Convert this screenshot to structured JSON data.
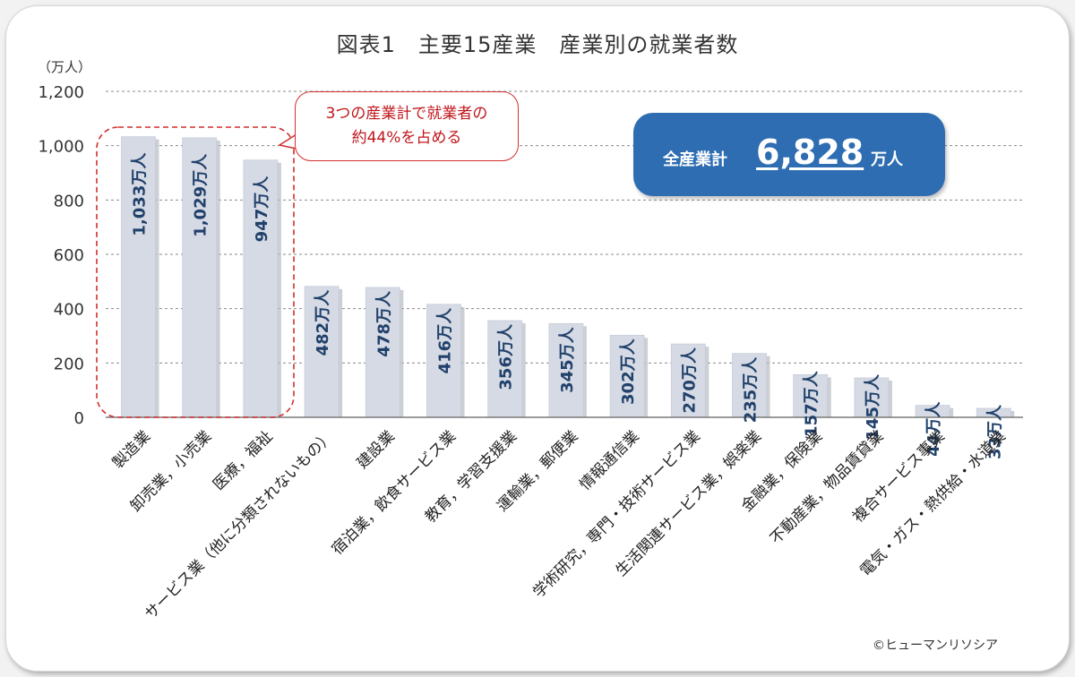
{
  "title": "図表1　主要15産業　産業別の就業者数",
  "unit_label": "（万人）",
  "callout": "3つの産業計で就業者の\n約44%を占める",
  "total": {
    "label": "全産業計",
    "value": "6,828",
    "unit": "万人"
  },
  "copyright": "©ヒューマンリソシア",
  "colors": {
    "bar": "#d5dae4",
    "bar_label": "#21416b",
    "total_box": "#2e6db2",
    "callout": "#d22f2f",
    "grid": "#8a8a8a"
  },
  "chart_data": {
    "type": "bar",
    "title": "図表1　主要15産業　産業別の就業者数",
    "ylabel": "（万人）",
    "xlabel": "",
    "ylim": [
      0,
      1200
    ],
    "yticks": [
      0,
      200,
      400,
      600,
      800,
      1000,
      1200
    ],
    "ytick_labels": [
      "0",
      "200",
      "400",
      "600",
      "800",
      "1,000",
      "1,200"
    ],
    "grid": true,
    "categories": [
      "製造業",
      "卸売業，小売業",
      "医療，福祉",
      "サービス業（他に分類されないもの）",
      "建設業",
      "宿泊業，飲食サービス業",
      "教育，学習支援業",
      "運輸業，郵便業",
      "情報通信業",
      "学術研究，専門・技術サービス業",
      "生活関連サービス業，娯楽業",
      "金融業，保険業",
      "不動産業，物品賃貸業",
      "複合サービス事業",
      "電気・ガス・熱供給・水道業"
    ],
    "values": [
      1033,
      1029,
      947,
      482,
      478,
      416,
      356,
      345,
      302,
      270,
      235,
      157,
      145,
      44,
      33
    ],
    "data_labels": [
      "1,033万人",
      "1,029万人",
      "947万人",
      "482万人",
      "478万人",
      "416万人",
      "356万人",
      "345万人",
      "302万人",
      "270万人",
      "235万人",
      "157万人",
      "145万人",
      "44万人",
      "33万人"
    ]
  }
}
